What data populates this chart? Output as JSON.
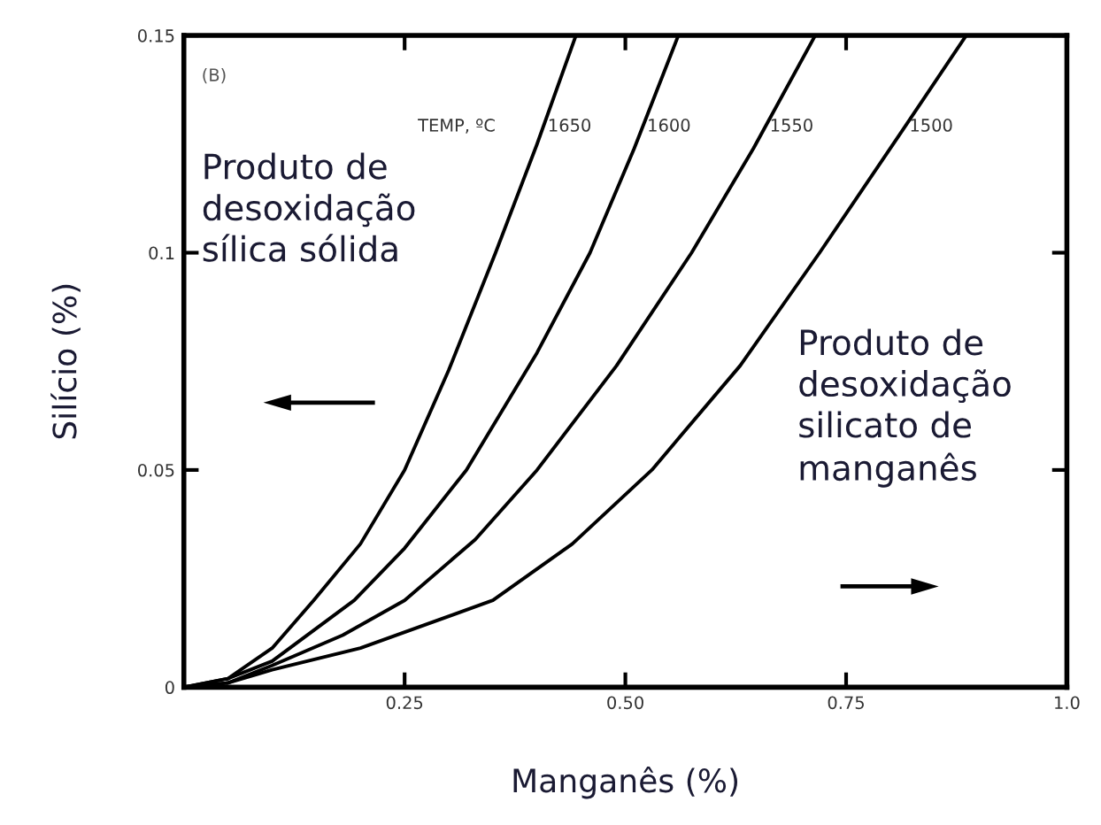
{
  "chart_data": {
    "type": "line",
    "xlabel": "Manganês (%)",
    "ylabel": "Silício (%)",
    "xlim": [
      0,
      1.0
    ],
    "ylim": [
      0,
      0.15
    ],
    "xticks": [
      0.25,
      {
        "value": 0.5,
        "label": "0.50"
      },
      0.75,
      {
        "value": 1.0,
        "label": "1.0"
      }
    ],
    "yticks": [
      0,
      0.05,
      0.1,
      0.15
    ],
    "grid": false,
    "legend": false,
    "marker": "none",
    "line_style": "solid",
    "legend_title": "TEMP, ºC",
    "series": [
      {
        "name": "1650",
        "color": "#000000",
        "x": [
          0,
          0.05,
          0.1,
          0.147,
          0.2,
          0.25,
          0.3,
          0.353,
          0.4,
          0.444
        ],
        "values": [
          0,
          0.002,
          0.009,
          0.02,
          0.033,
          0.05,
          0.073,
          0.1,
          0.125,
          0.15
        ]
      },
      {
        "name": "1600",
        "color": "#000000",
        "x": [
          0,
          0.05,
          0.1,
          0.193,
          0.25,
          0.32,
          0.4,
          0.46,
          0.51,
          0.56
        ],
        "values": [
          0,
          0.002,
          0.006,
          0.02,
          0.032,
          0.05,
          0.077,
          0.1,
          0.124,
          0.15
        ]
      },
      {
        "name": "1550",
        "color": "#000000",
        "x": [
          0,
          0.05,
          0.1,
          0.18,
          0.25,
          0.33,
          0.4,
          0.49,
          0.575,
          0.645,
          0.715
        ],
        "values": [
          0,
          0.001,
          0.005,
          0.012,
          0.02,
          0.034,
          0.05,
          0.074,
          0.1,
          0.124,
          0.15
        ]
      },
      {
        "name": "1500",
        "color": "#000000",
        "x": [
          0,
          0.05,
          0.1,
          0.2,
          0.35,
          0.44,
          0.53,
          0.63,
          0.72,
          0.8,
          0.886
        ],
        "values": [
          0,
          0.001,
          0.004,
          0.009,
          0.02,
          0.033,
          0.05,
          0.074,
          0.1,
          0.124,
          0.15
        ]
      }
    ],
    "annotations": [
      "(B)",
      "Produto de\ndesoxidação\nsílica sólida",
      "Produto de\ndesoxidação\nsilicato de\nmanganês"
    ]
  }
}
